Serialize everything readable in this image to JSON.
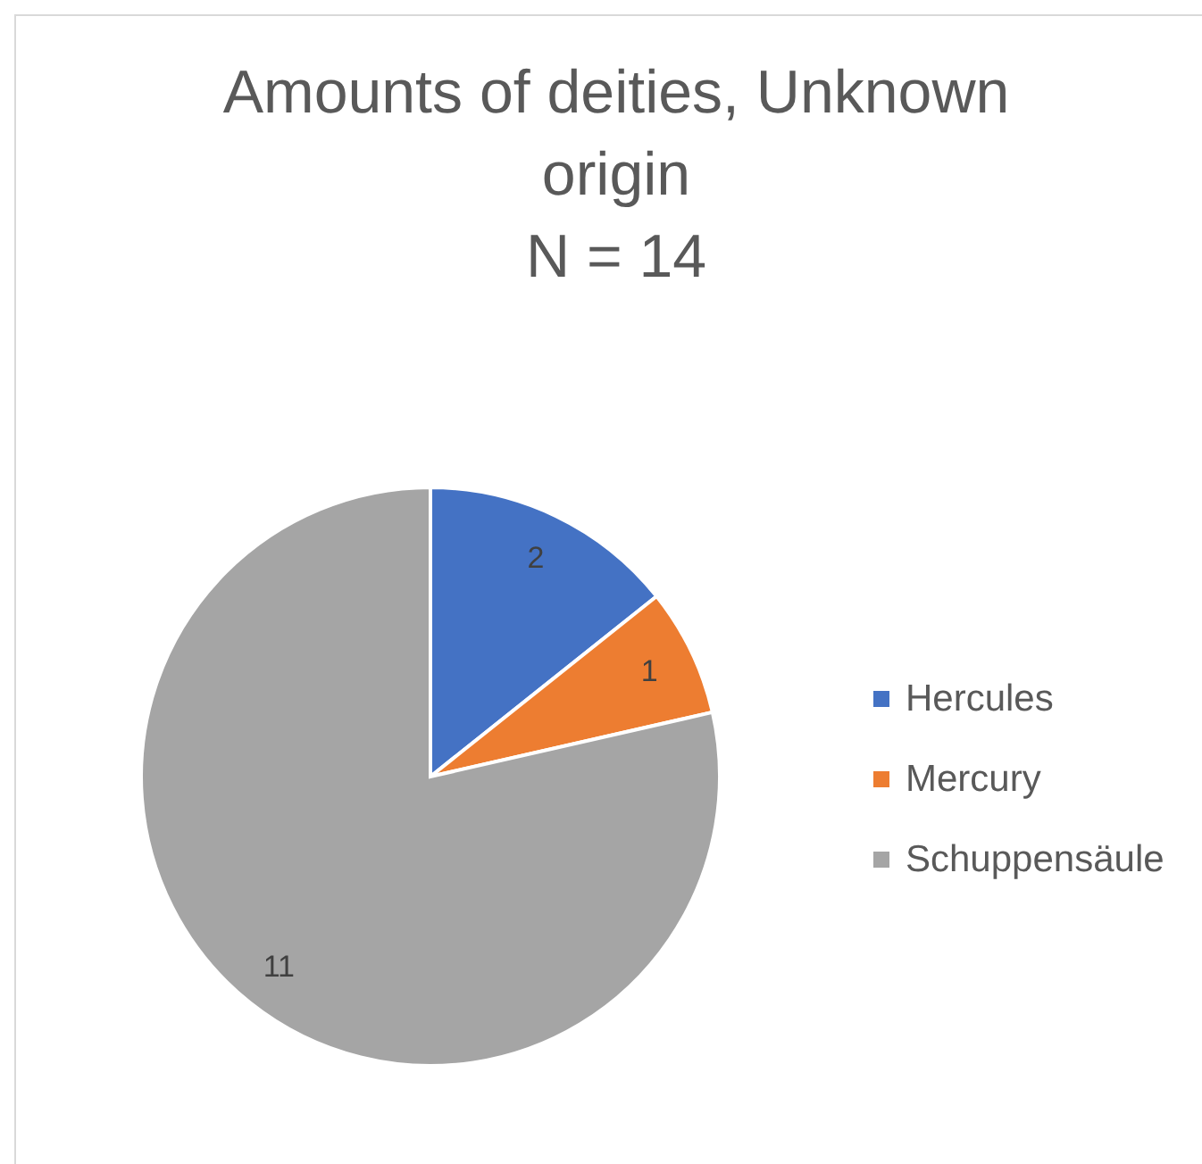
{
  "chart_data": {
    "type": "pie",
    "title": "Amounts of deities, Unknown origin",
    "subtitle": "N = 14",
    "categories": [
      "Hercules",
      "Mercury",
      "Schuppensäule"
    ],
    "values": [
      2,
      1,
      11
    ],
    "colors": [
      "#4472c4",
      "#ed7d31",
      "#a5a5a5"
    ],
    "data_labels": true,
    "legend": "right"
  }
}
